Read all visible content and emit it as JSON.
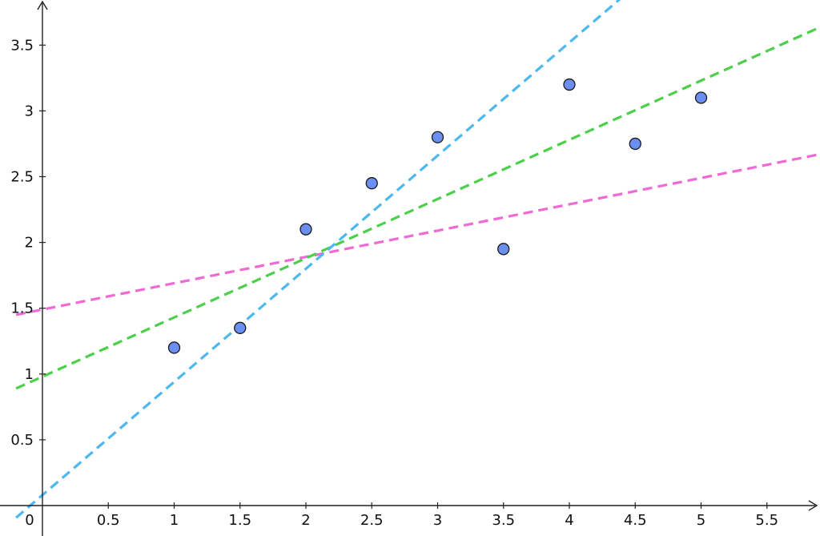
{
  "chart_data": {
    "type": "scatter",
    "title": "",
    "xlabel": "",
    "ylabel": "",
    "xlim": [
      -0.2,
      5.9
    ],
    "ylim": [
      -0.2,
      3.8
    ],
    "grid": false,
    "x_ticks": [
      0.5,
      1,
      1.5,
      2,
      2.5,
      3,
      3.5,
      4,
      4.5,
      5,
      5.5
    ],
    "x_tick_labels": [
      "0.5",
      "1",
      "1.5",
      "2",
      "2.5",
      "3",
      "3.5",
      "4",
      "4.5",
      "5",
      "5.5"
    ],
    "y_ticks": [
      0.5,
      1,
      1.5,
      2,
      2.5,
      3,
      3.5
    ],
    "y_tick_labels": [
      "0.5",
      "1",
      "1.5",
      "2",
      "2.5",
      "3",
      "3.5"
    ],
    "origin_label": "0",
    "points": [
      {
        "x": 1,
        "y": 1.2
      },
      {
        "x": 1.5,
        "y": 1.35
      },
      {
        "x": 2,
        "y": 2.1
      },
      {
        "x": 2.5,
        "y": 2.45
      },
      {
        "x": 3,
        "y": 2.8
      },
      {
        "x": 3.5,
        "y": 1.95
      },
      {
        "x": 4,
        "y": 3.2
      },
      {
        "x": 4.5,
        "y": 2.75
      },
      {
        "x": 5,
        "y": 3.1
      }
    ],
    "point_color": "#6b8ff0",
    "lines": [
      {
        "color": "#f06ad4",
        "intercept": 1.49,
        "slope": 0.2
      },
      {
        "color": "#4ccf4a",
        "intercept": 0.98,
        "slope": 0.45
      },
      {
        "color": "#4db8f0",
        "intercept": 0.08,
        "slope": 0.86
      }
    ]
  }
}
